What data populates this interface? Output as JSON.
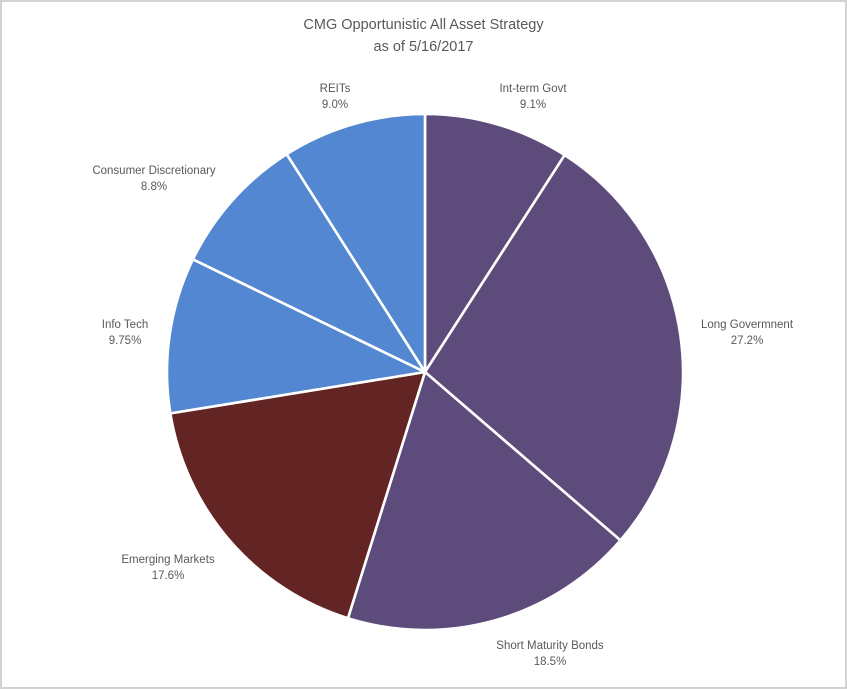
{
  "chart_data": {
    "type": "pie",
    "title": "CMG Opportunistic All Asset Strategy",
    "subtitle": "as of 5/16/2017",
    "direction": "clockwise",
    "start_angle_deg_from_top": 0,
    "divider_color": "#ffffff",
    "text_color": "#595959",
    "slices": [
      {
        "id": "int-term-govt",
        "label": "Int-term Govt",
        "value_label": "9.1%",
        "percent": 9.1,
        "color": "#5d4b7c"
      },
      {
        "id": "long-govermnent",
        "label": "Long Govermnent",
        "value_label": "27.2%",
        "percent": 27.2,
        "color": "#5d4b7c"
      },
      {
        "id": "short-maturity-bonds",
        "label": "Short Maturity Bonds",
        "value_label": "18.5%",
        "percent": 18.5,
        "color": "#5d4b7c"
      },
      {
        "id": "emerging-markets",
        "label": "Emerging Markets",
        "value_label": "17.6%",
        "percent": 17.6,
        "color": "#632523"
      },
      {
        "id": "info-tech",
        "label": "Info Tech",
        "value_label": "9.75%",
        "percent": 9.75,
        "color": "#5487d1"
      },
      {
        "id": "consumer-discretionary",
        "label": "Consumer Discretionary",
        "value_label": "8.8%",
        "percent": 8.8,
        "color": "#5487d1"
      },
      {
        "id": "reits",
        "label": "REITs",
        "value_label": "9.0%",
        "percent": 9.0,
        "color": "#5487d1"
      }
    ]
  }
}
